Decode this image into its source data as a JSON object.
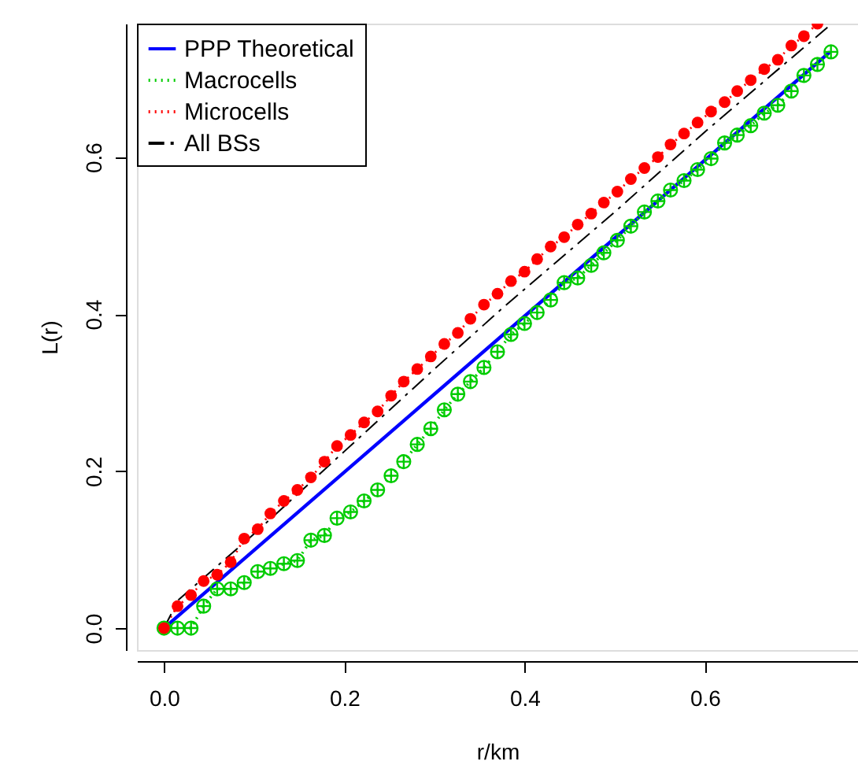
{
  "chart_data": {
    "type": "line",
    "xlabel": "r/km",
    "ylabel": "L(r)",
    "xlim": [
      -0.03,
      0.77
    ],
    "ylim": [
      -0.028,
      0.77
    ],
    "xticks": [
      {
        "value": 0,
        "label": "0.0"
      },
      {
        "value": 0.2,
        "label": "0.2"
      },
      {
        "value": 0.4,
        "label": "0.4"
      },
      {
        "value": 0.6,
        "label": "0.6"
      }
    ],
    "yticks": [
      {
        "value": 0,
        "label": "0.0"
      },
      {
        "value": 0.2,
        "label": "0.2"
      },
      {
        "value": 0.4,
        "label": "0.4"
      },
      {
        "value": 0.6,
        "label": "0.6"
      }
    ],
    "grid": false,
    "legend": "top left",
    "series": [
      {
        "name": "PPP Theoretical",
        "color": "#0000ff",
        "line_style": "solid",
        "marker": "none",
        "x": [
          0,
          0.739
        ],
        "values": [
          0,
          0.734
        ]
      },
      {
        "name": "Macrocells",
        "color": "#00cc00",
        "line_style": "dotted",
        "marker": "cross",
        "x": [
          0,
          0.015,
          0.03,
          0.044,
          0.059,
          0.074,
          0.089,
          0.104,
          0.118,
          0.133,
          0.148,
          0.163,
          0.178,
          0.192,
          0.207,
          0.222,
          0.237,
          0.252,
          0.266,
          0.281,
          0.296,
          0.311,
          0.326,
          0.34,
          0.355,
          0.37,
          0.385,
          0.4,
          0.414,
          0.429,
          0.444,
          0.459,
          0.474,
          0.488,
          0.503,
          0.518,
          0.533,
          0.548,
          0.562,
          0.577,
          0.592,
          0.607,
          0.622,
          0.636,
          0.651,
          0.666,
          0.681,
          0.696,
          0.71,
          0.725,
          0.74
        ],
        "values": [
          0,
          0,
          0,
          0.028,
          0.05,
          0.05,
          0.058,
          0.072,
          0.076,
          0.082,
          0.086,
          0.112,
          0.118,
          0.14,
          0.148,
          0.162,
          0.176,
          0.194,
          0.212,
          0.234,
          0.254,
          0.278,
          0.298,
          0.314,
          0.332,
          0.352,
          0.374,
          0.388,
          0.402,
          0.418,
          0.44,
          0.446,
          0.462,
          0.478,
          0.494,
          0.512,
          0.53,
          0.544,
          0.558,
          0.57,
          0.584,
          0.598,
          0.618,
          0.628,
          0.64,
          0.656,
          0.666,
          0.684,
          0.704,
          0.718,
          0.734
        ]
      },
      {
        "name": "Microcells",
        "color": "#ff0000",
        "line_style": "dotted",
        "marker": "circle",
        "x": [
          0,
          0.015,
          0.03,
          0.044,
          0.059,
          0.074,
          0.089,
          0.104,
          0.118,
          0.133,
          0.148,
          0.163,
          0.178,
          0.192,
          0.207,
          0.222,
          0.237,
          0.252,
          0.266,
          0.281,
          0.296,
          0.311,
          0.326,
          0.34,
          0.355,
          0.37,
          0.385,
          0.4,
          0.414,
          0.429,
          0.444,
          0.459,
          0.474,
          0.488,
          0.503,
          0.518,
          0.533,
          0.548,
          0.562,
          0.577,
          0.592,
          0.607,
          0.622,
          0.636,
          0.651,
          0.666,
          0.681,
          0.696,
          0.71,
          0.725
        ],
        "values": [
          0,
          0.028,
          0.042,
          0.06,
          0.068,
          0.084,
          0.114,
          0.126,
          0.146,
          0.162,
          0.176,
          0.192,
          0.212,
          0.232,
          0.246,
          0.262,
          0.276,
          0.296,
          0.314,
          0.33,
          0.346,
          0.362,
          0.376,
          0.394,
          0.412,
          0.426,
          0.442,
          0.454,
          0.47,
          0.486,
          0.498,
          0.514,
          0.528,
          0.542,
          0.556,
          0.572,
          0.586,
          0.6,
          0.616,
          0.63,
          0.644,
          0.658,
          0.67,
          0.684,
          0.698,
          0.712,
          0.724,
          0.742,
          0.754,
          0.77
        ]
      },
      {
        "name": "All BSs",
        "color": "#000000",
        "line_style": "dashdot",
        "marker": "none",
        "x": [
          0,
          0.016,
          0.05,
          0.1,
          0.2,
          0.3,
          0.374,
          0.5,
          0.6,
          0.741
        ],
        "values": [
          0,
          0.036,
          0.07,
          0.12,
          0.225,
          0.33,
          0.406,
          0.53,
          0.632,
          0.77
        ]
      }
    ]
  }
}
